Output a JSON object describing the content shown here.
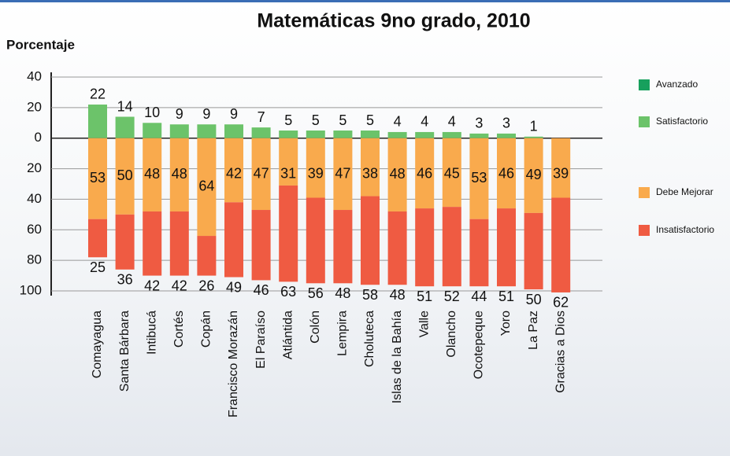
{
  "chart_data": {
    "type": "diverging_stacked_bar",
    "title": "Matemáticas 9no grado, 2010",
    "y_label": "Porcentaje",
    "categories": [
      "Comayagua",
      "Santa Bárbara",
      "Intibucá",
      "Cortés",
      "Copán",
      "Francisco Morazán",
      "El Paraíso",
      "Atlántida",
      "Colón",
      "Lempira",
      "Choluteca",
      "Islas de la Bahía",
      "Valle",
      "Olancho",
      "Ocotepeque",
      "Yoro",
      "La Paz",
      "Gracias a Dios"
    ],
    "series": [
      {
        "name": "Avanzado",
        "color": "#17a05d",
        "values": [
          0,
          0,
          0,
          0,
          0,
          0,
          0,
          0,
          0,
          0,
          0,
          0,
          0,
          0,
          0,
          0,
          0,
          0
        ]
      },
      {
        "name": "Satisfactorio",
        "color": "#6cc36a",
        "values": [
          22,
          14,
          10,
          9,
          9,
          9,
          7,
          5,
          5,
          5,
          5,
          4,
          4,
          4,
          3,
          3,
          1,
          null
        ]
      },
      {
        "name": "Debe Mejorar",
        "color": "#f9aa4d",
        "values": [
          -53,
          -50,
          -48,
          -48,
          -64,
          -42,
          -47,
          -31,
          -39,
          -47,
          -38,
          -48,
          -46,
          -45,
          -53,
          -46,
          -49,
          -39
        ],
        "value_labels": [
          "53",
          "50",
          "48",
          "48",
          "64",
          "42",
          "47",
          "31",
          "39",
          "47",
          "38",
          "48",
          "46",
          "45",
          "53",
          "46",
          "49",
          "39"
        ]
      },
      {
        "name": "Insatisfactorio",
        "color": "#ef5b42",
        "values": [
          -25,
          -36,
          -42,
          -42,
          -26,
          -49,
          -46,
          -63,
          -56,
          -48,
          -58,
          -48,
          -51,
          -52,
          -44,
          -51,
          -50,
          -62
        ],
        "value_labels": [
          "25",
          "36",
          "42",
          "42",
          "26",
          "49",
          "46",
          "63",
          "56",
          "48",
          "58",
          "48",
          "51",
          "52",
          "44",
          "51",
          "50",
          "62"
        ]
      }
    ],
    "ylim": [
      -100,
      40
    ],
    "yticks": [
      40,
      20,
      0,
      {
        "value": -20,
        "label": "20"
      },
      {
        "value": -40,
        "label": "40"
      },
      {
        "value": -60,
        "label": "60"
      },
      {
        "value": -80,
        "label": "80"
      },
      {
        "value": -100,
        "label": "100"
      }
    ],
    "grid": true
  }
}
